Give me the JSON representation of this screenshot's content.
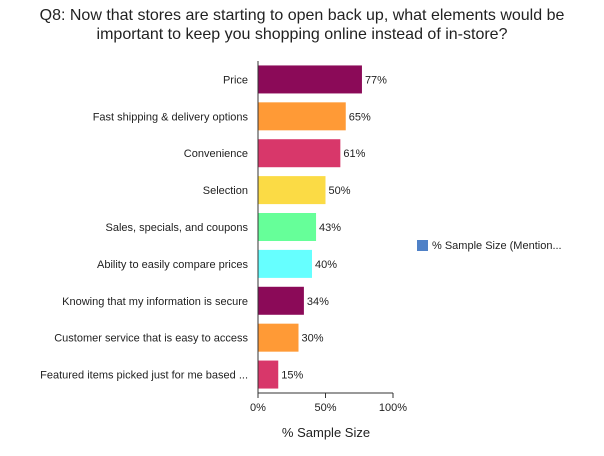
{
  "chart_data": {
    "type": "bar",
    "orientation": "horizontal",
    "title": "Q8: Now that stores are starting to open back up, what elements would be important to keep you shopping online instead of in-store?",
    "title_lines": [
      "Q8: Now that stores are starting to open back up, what elements would be",
      "important to keep you shopping online instead of in-store?"
    ],
    "categories": [
      "Price",
      "Fast shipping & delivery options",
      "Convenience",
      "Selection",
      "Sales, specials, and coupons",
      "Ability to easily compare prices",
      "Knowing that my information is secure",
      "Customer service that is easy to access",
      "Featured items picked just for me based ..."
    ],
    "values": [
      77,
      65,
      61,
      50,
      43,
      40,
      34,
      30,
      15
    ],
    "value_labels": [
      "77%",
      "65%",
      "61%",
      "50%",
      "43%",
      "40%",
      "34%",
      "30%",
      "15%"
    ],
    "bar_colors": [
      "#8b0a58",
      "#ff9a36",
      "#d8376a",
      "#fbdb45",
      "#66ff99",
      "#66ffff",
      "#8b0a58",
      "#ff9a36",
      "#d8376a"
    ],
    "series": [
      {
        "name": "% Sample Size (Mention...",
        "values": [
          77,
          65,
          61,
          50,
          43,
          40,
          34,
          30,
          15
        ],
        "legend_color": "#4f81c7"
      }
    ],
    "xlabel": "% Sample Size",
    "ylabel": "",
    "xlim": [
      0,
      100
    ],
    "xticks": [
      0,
      50,
      100
    ],
    "xtick_labels": [
      "0%",
      "50%",
      "100%"
    ],
    "grid": false,
    "legend_position": "right"
  }
}
